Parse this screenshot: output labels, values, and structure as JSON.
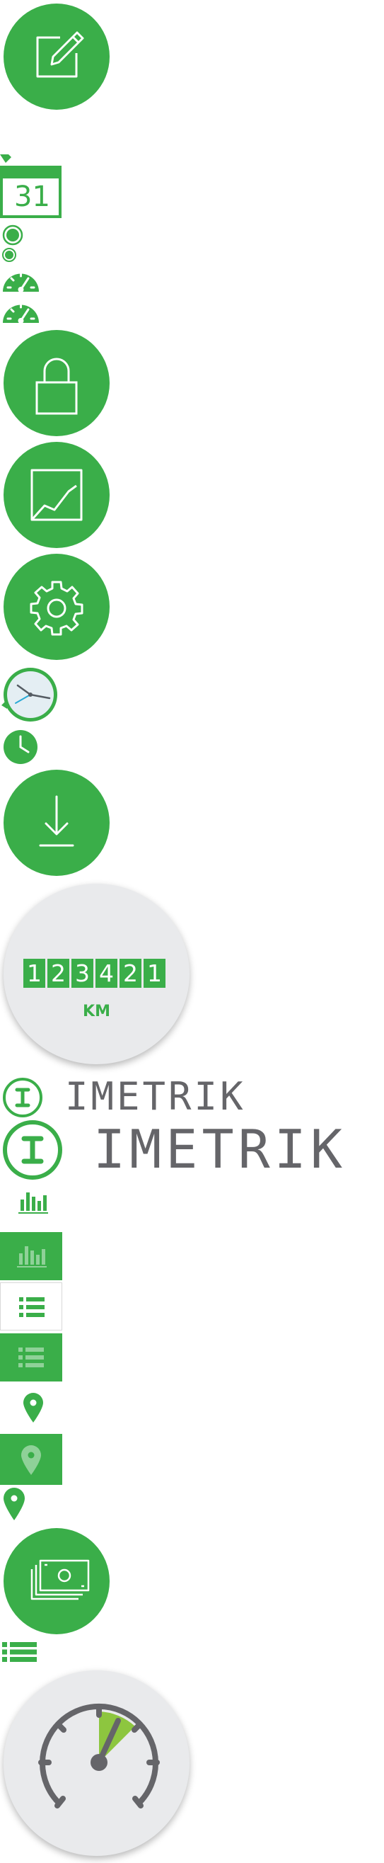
{
  "colors": {
    "brand_green": "#3aae49",
    "light_green": "#8dc63f",
    "dark_grey": "#656569",
    "light_grey": "#e9eaec",
    "white": "#ffffff"
  },
  "icons": [
    "edit-icon",
    "calendar-icon",
    "radio-filled-icon",
    "radio-small-icon",
    "speedometer-small-icon",
    "speedometer-small-icon-2",
    "lock-icon",
    "chart-icon",
    "gear-icon",
    "clock-icon",
    "clock-small-icon",
    "download-icon",
    "imetrik-logo-small",
    "imetrik-logo-large",
    "bar-chart-icon",
    "bar-chart-tile-icon",
    "list-tile-white-icon",
    "list-tile-green-icon",
    "location-pin-icon",
    "location-pin-tile-icon",
    "location-pin-small-icon",
    "money-icon",
    "list-small-icon",
    "speedometer-large-icon"
  ],
  "calendar": {
    "day": "31"
  },
  "odometer": {
    "digits": [
      "1",
      "2",
      "3",
      "4",
      "2",
      "1"
    ],
    "unit": "KM"
  },
  "brand": {
    "name_small": "IMETRIK",
    "name_large": "IMETRIK"
  }
}
